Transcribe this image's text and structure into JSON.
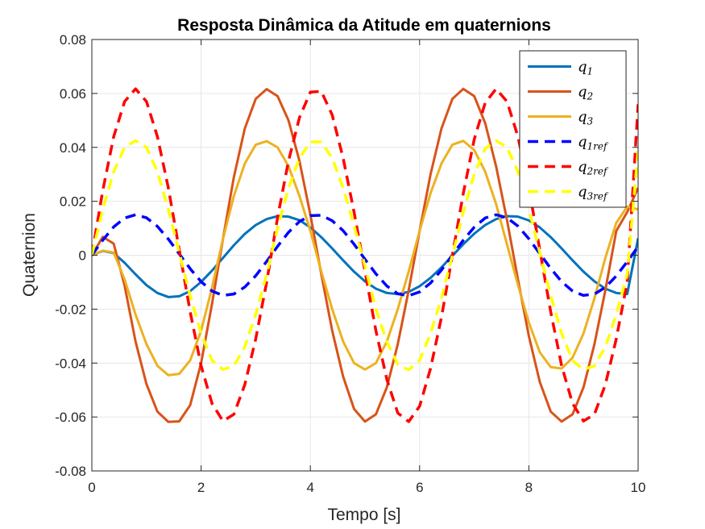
{
  "chart_data": {
    "type": "line",
    "title": "Resposta Dinâmica da Atitude em quaternions",
    "xlabel": "Tempo [s]",
    "ylabel": "Quaternion",
    "xlim": [
      0,
      10
    ],
    "ylim": [
      -0.08,
      0.08
    ],
    "xticks": [
      0,
      2,
      4,
      6,
      8,
      10
    ],
    "xtick_labels": [
      "0",
      "2",
      "4",
      "6",
      "8",
      "10"
    ],
    "yticks": [
      -0.08,
      -0.06,
      -0.04,
      -0.02,
      0,
      0.02,
      0.04,
      0.06,
      0.08
    ],
    "ytick_labels": [
      "-0.08",
      "-0.06",
      "-0.04",
      "-0.02",
      "0",
      "0.02",
      "0.04",
      "0.06",
      "0.08"
    ],
    "grid": true,
    "legend_position": "top-right",
    "series": [
      {
        "name": "q1",
        "base": "q",
        "sub": "1",
        "color": "#0072bd",
        "dash": "solid",
        "x": [
          0,
          0.2,
          0.4,
          0.6,
          0.8,
          1.0,
          1.2,
          1.4,
          1.6,
          1.8,
          2.0,
          2.2,
          2.4,
          2.6,
          2.8,
          3.0,
          3.2,
          3.4,
          3.6,
          3.8,
          4.0,
          4.2,
          4.4,
          4.6,
          4.8,
          5.0,
          5.2,
          5.4,
          5.6,
          5.8,
          6.0,
          6.2,
          6.4,
          6.6,
          6.8,
          7.0,
          7.2,
          7.4,
          7.6,
          7.8,
          8.0,
          8.2,
          8.4,
          8.6,
          8.8,
          9.0,
          9.2,
          9.4,
          9.6,
          9.8,
          10.0
        ],
        "y": [
          0,
          0.0016,
          0.0008,
          -0.0028,
          -0.0071,
          -0.0111,
          -0.014,
          -0.0155,
          -0.0152,
          -0.0133,
          -0.0099,
          -0.0057,
          -0.001,
          0.0037,
          0.0079,
          0.0112,
          0.0134,
          0.0145,
          0.0143,
          0.013,
          0.0103,
          0.0067,
          0.0025,
          -0.0019,
          -0.0061,
          -0.0097,
          -0.0124,
          -0.014,
          -0.0144,
          -0.0136,
          -0.0115,
          -0.0084,
          -0.0045,
          -0.0002,
          0.0041,
          0.008,
          0.0112,
          0.0134,
          0.0145,
          0.0143,
          0.0129,
          0.0103,
          0.0067,
          0.0025,
          -0.0019,
          -0.0061,
          -0.0097,
          -0.0124,
          -0.014,
          -0.0144,
          0.0063
        ]
      },
      {
        "name": "q2",
        "base": "q",
        "sub": "2",
        "color": "#d95319",
        "dash": "solid",
        "x": [
          0,
          0.2,
          0.4,
          0.6,
          0.8,
          1.0,
          1.2,
          1.4,
          1.6,
          1.8,
          2.0,
          2.2,
          2.4,
          2.6,
          2.8,
          3.0,
          3.2,
          3.4,
          3.6,
          3.8,
          4.0,
          4.2,
          4.4,
          4.6,
          4.8,
          5.0,
          5.2,
          5.4,
          5.6,
          5.8,
          6.0,
          6.2,
          6.4,
          6.6,
          6.8,
          7.0,
          7.2,
          7.4,
          7.6,
          7.8,
          8.0,
          8.2,
          8.4,
          8.6,
          8.8,
          9.0,
          9.2,
          9.4,
          9.6,
          9.8,
          10.0
        ],
        "y": [
          0,
          0.0068,
          0.0043,
          -0.0113,
          -0.032,
          -0.0478,
          -0.058,
          -0.0618,
          -0.0616,
          -0.0556,
          -0.04,
          -0.018,
          0.006,
          0.029,
          0.047,
          0.058,
          0.0616,
          0.059,
          0.05,
          0.035,
          0.015,
          -0.007,
          -0.028,
          -0.045,
          -0.057,
          -0.0617,
          -0.059,
          -0.049,
          -0.033,
          -0.013,
          0.009,
          0.03,
          0.047,
          0.058,
          0.0617,
          0.059,
          0.049,
          0.033,
          0.013,
          -0.009,
          -0.03,
          -0.047,
          -0.058,
          -0.0617,
          -0.059,
          -0.049,
          -0.033,
          -0.013,
          0.009,
          0.016,
          0.025
        ]
      },
      {
        "name": "q3",
        "base": "q",
        "sub": "3",
        "color": "#edb120",
        "dash": "solid",
        "x": [
          0,
          0.2,
          0.4,
          0.6,
          0.8,
          1.0,
          1.2,
          1.4,
          1.6,
          1.8,
          2.0,
          2.2,
          2.4,
          2.6,
          2.8,
          3.0,
          3.2,
          3.4,
          3.6,
          3.8,
          4.0,
          4.2,
          4.4,
          4.6,
          4.8,
          5.0,
          5.2,
          5.4,
          5.6,
          5.8,
          6.0,
          6.2,
          6.4,
          6.6,
          6.8,
          7.0,
          7.2,
          7.4,
          7.6,
          7.8,
          8.0,
          8.2,
          8.4,
          8.6,
          8.8,
          9.0,
          9.2,
          9.4,
          9.6,
          9.8,
          10.0
        ],
        "y": [
          0,
          0.0017,
          0.001,
          -0.009,
          -0.022,
          -0.033,
          -0.041,
          -0.0445,
          -0.044,
          -0.039,
          -0.028,
          -0.012,
          0.006,
          0.022,
          0.034,
          0.041,
          0.0423,
          0.04,
          0.033,
          0.022,
          0.009,
          -0.006,
          -0.02,
          -0.032,
          -0.04,
          -0.0424,
          -0.04,
          -0.032,
          -0.02,
          -0.006,
          0.009,
          0.023,
          0.034,
          0.041,
          0.0424,
          0.039,
          0.031,
          0.019,
          0.004,
          -0.011,
          -0.025,
          -0.036,
          -0.0415,
          -0.042,
          -0.038,
          -0.029,
          -0.016,
          -0.001,
          0.012,
          0.018,
          0.017
        ]
      },
      {
        "name": "q1ref",
        "base": "q",
        "sub": "1ref",
        "color": "#0000ff",
        "dash": "dashed",
        "x": [
          0,
          0.2,
          0.4,
          0.6,
          0.8,
          1.0,
          1.2,
          1.4,
          1.6,
          1.8,
          2.0,
          2.2,
          2.4,
          2.6,
          2.8,
          3.0,
          3.2,
          3.4,
          3.6,
          3.8,
          4.0,
          4.2,
          4.4,
          4.6,
          4.8,
          5.0,
          5.2,
          5.4,
          5.6,
          5.8,
          6.0,
          6.2,
          6.4,
          6.6,
          6.8,
          7.0,
          7.2,
          7.4,
          7.6,
          7.8,
          8.0,
          8.2,
          8.4,
          8.6,
          8.8,
          9.0,
          9.2,
          9.4,
          9.6,
          9.8,
          10.0
        ],
        "y": [
          0,
          0.0056,
          0.0105,
          0.0138,
          0.015,
          0.0139,
          0.0107,
          0.006,
          0.0005,
          -0.005,
          -0.0098,
          -0.0133,
          -0.0149,
          -0.0144,
          -0.0118,
          -0.0076,
          -0.0023,
          0.0033,
          0.0085,
          0.0125,
          0.0147,
          0.0148,
          0.0128,
          0.0091,
          0.0041,
          -0.0015,
          -0.0069,
          -0.0114,
          -0.0143,
          -0.015,
          -0.0136,
          -0.0103,
          -0.0055,
          0.0001,
          0.0056,
          0.0104,
          0.0138,
          0.015,
          0.0139,
          0.0108,
          0.0061,
          0.0006,
          -0.0049,
          -0.0098,
          -0.0133,
          -0.0149,
          -0.0144,
          -0.0119,
          -0.0077,
          -0.0024,
          0.0032
        ]
      },
      {
        "name": "q2ref",
        "base": "q",
        "sub": "2ref",
        "color": "#ff0000",
        "dash": "dashed",
        "x": [
          0,
          0.2,
          0.4,
          0.6,
          0.8,
          1.0,
          1.2,
          1.4,
          1.6,
          1.8,
          2.0,
          2.2,
          2.4,
          2.6,
          2.8,
          3.0,
          3.2,
          3.4,
          3.6,
          3.8,
          4.0,
          4.2,
          4.4,
          4.6,
          4.8,
          5.0,
          5.2,
          5.4,
          5.6,
          5.8,
          6.0,
          6.2,
          6.4,
          6.6,
          6.8,
          7.0,
          7.2,
          7.4,
          7.6,
          7.8,
          8.0,
          8.2,
          8.4,
          8.6,
          8.8,
          9.0,
          9.2,
          9.4,
          9.6,
          9.8,
          10.0
        ],
        "y": [
          0,
          0.024,
          0.044,
          0.057,
          0.0617,
          0.057,
          0.044,
          0.025,
          0.002,
          -0.021,
          -0.041,
          -0.055,
          -0.0615,
          -0.059,
          -0.048,
          -0.031,
          -0.01,
          0.014,
          0.035,
          0.051,
          0.0605,
          0.0608,
          0.052,
          0.036,
          0.016,
          -0.006,
          -0.028,
          -0.046,
          -0.0585,
          -0.0617,
          -0.056,
          -0.042,
          -0.023,
          0.0,
          0.023,
          0.043,
          0.0565,
          0.0617,
          0.057,
          0.044,
          0.025,
          0.002,
          -0.021,
          -0.041,
          -0.055,
          -0.0615,
          -0.059,
          -0.048,
          -0.031,
          -0.01,
          0.056
        ]
      },
      {
        "name": "q3ref",
        "base": "q",
        "sub": "3ref",
        "color": "#ffff00",
        "dash": "dashed",
        "x": [
          0,
          0.2,
          0.4,
          0.6,
          0.8,
          1.0,
          1.2,
          1.4,
          1.6,
          1.8,
          2.0,
          2.2,
          2.4,
          2.6,
          2.8,
          3.0,
          3.2,
          3.4,
          3.6,
          3.8,
          4.0,
          4.2,
          4.4,
          4.6,
          4.8,
          5.0,
          5.2,
          5.4,
          5.6,
          5.8,
          6.0,
          6.2,
          6.4,
          6.6,
          6.8,
          7.0,
          7.2,
          7.4,
          7.6,
          7.8,
          8.0,
          8.2,
          8.4,
          8.6,
          8.8,
          9.0,
          9.2,
          9.4,
          9.6,
          9.8,
          10.0
        ],
        "y": [
          0,
          0.017,
          0.031,
          0.04,
          0.0425,
          0.04,
          0.031,
          0.017,
          0.001,
          -0.015,
          -0.029,
          -0.039,
          -0.0424,
          -0.041,
          -0.034,
          -0.022,
          -0.007,
          0.01,
          0.025,
          0.036,
          0.042,
          0.042,
          0.036,
          0.025,
          0.011,
          -0.004,
          -0.02,
          -0.032,
          -0.0405,
          -0.0425,
          -0.039,
          -0.029,
          -0.016,
          0.0,
          0.016,
          0.03,
          0.0395,
          0.0425,
          0.04,
          0.031,
          0.017,
          0.001,
          -0.015,
          -0.029,
          -0.039,
          -0.0424,
          -0.041,
          -0.034,
          -0.022,
          -0.007,
          0.039
        ]
      }
    ]
  }
}
